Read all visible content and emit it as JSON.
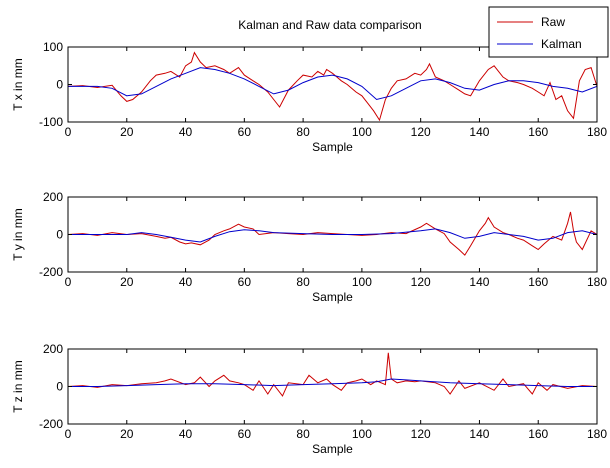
{
  "title": "Kalman and Raw data comparison",
  "legend": {
    "position": "top-right",
    "items": [
      {
        "label": "Raw",
        "color": "#cc0000"
      },
      {
        "label": "Kalman",
        "color": "#0000cc"
      }
    ]
  },
  "colors": {
    "raw": "#cc0000",
    "kalman": "#0000cc",
    "axes": "#000000",
    "background": "#ffffff"
  },
  "chart_data": [
    {
      "type": "line",
      "xlabel": "Sample",
      "ylabel": "T x in mm",
      "xlim": [
        0,
        180
      ],
      "ylim": [
        -100,
        100
      ],
      "xticks": [
        0,
        20,
        40,
        60,
        80,
        100,
        120,
        140,
        160,
        180
      ],
      "yticks": [
        -100,
        0,
        100
      ],
      "grid": false,
      "series": [
        {
          "name": "Raw",
          "color": "#cc0000",
          "x": [
            0,
            5,
            10,
            15,
            18,
            20,
            22,
            25,
            28,
            30,
            33,
            35,
            38,
            40,
            42,
            43,
            45,
            47,
            50,
            53,
            55,
            58,
            60,
            63,
            65,
            68,
            70,
            72,
            75,
            78,
            80,
            83,
            85,
            87,
            88,
            90,
            93,
            95,
            98,
            100,
            102,
            104,
            106,
            108,
            110,
            112,
            115,
            118,
            120,
            122,
            123,
            125,
            128,
            130,
            133,
            135,
            137,
            140,
            143,
            145,
            148,
            150,
            153,
            155,
            158,
            160,
            162,
            164,
            166,
            168,
            170,
            172,
            174,
            176,
            178,
            180
          ],
          "y": [
            -5,
            -3,
            -8,
            -2,
            -30,
            -45,
            -40,
            -20,
            10,
            25,
            30,
            35,
            20,
            50,
            60,
            85,
            60,
            45,
            50,
            40,
            30,
            45,
            25,
            10,
            0,
            -20,
            -40,
            -60,
            -15,
            10,
            25,
            20,
            35,
            25,
            40,
            30,
            10,
            0,
            -20,
            -30,
            -50,
            -70,
            -95,
            -40,
            -10,
            10,
            15,
            30,
            25,
            40,
            55,
            20,
            10,
            0,
            -15,
            -25,
            -30,
            10,
            40,
            50,
            20,
            10,
            5,
            0,
            -10,
            -20,
            -30,
            5,
            -40,
            -30,
            -70,
            -90,
            10,
            40,
            45,
            -5
          ]
        },
        {
          "name": "Kalman",
          "color": "#0000cc",
          "x": [
            0,
            10,
            15,
            20,
            25,
            30,
            35,
            40,
            45,
            50,
            55,
            60,
            65,
            70,
            75,
            80,
            85,
            90,
            95,
            100,
            105,
            110,
            115,
            120,
            125,
            130,
            135,
            140,
            145,
            150,
            155,
            160,
            165,
            170,
            175,
            180
          ],
          "y": [
            -5,
            -5,
            -10,
            -30,
            -25,
            -5,
            15,
            30,
            45,
            40,
            30,
            15,
            -5,
            -25,
            -15,
            5,
            20,
            25,
            15,
            -5,
            -40,
            -30,
            -10,
            10,
            15,
            5,
            -10,
            -15,
            0,
            10,
            10,
            5,
            -5,
            -10,
            -20,
            -5
          ]
        }
      ]
    },
    {
      "type": "line",
      "xlabel": "Sample",
      "ylabel": "T y in mm",
      "xlim": [
        0,
        180
      ],
      "ylim": [
        -200,
        200
      ],
      "xticks": [
        0,
        20,
        40,
        60,
        80,
        100,
        120,
        140,
        160,
        180
      ],
      "yticks": [
        -200,
        0,
        200
      ],
      "grid": false,
      "series": [
        {
          "name": "Raw",
          "color": "#cc0000",
          "x": [
            0,
            5,
            10,
            15,
            20,
            25,
            30,
            33,
            35,
            38,
            40,
            42,
            45,
            48,
            50,
            53,
            55,
            58,
            60,
            63,
            65,
            70,
            75,
            80,
            85,
            90,
            95,
            100,
            105,
            110,
            115,
            120,
            122,
            125,
            128,
            130,
            133,
            135,
            137,
            140,
            142,
            143,
            145,
            148,
            150,
            153,
            155,
            158,
            160,
            162,
            165,
            168,
            170,
            171,
            172,
            173,
            175,
            178,
            180
          ],
          "y": [
            0,
            5,
            -5,
            10,
            0,
            5,
            -10,
            -20,
            -15,
            -40,
            -50,
            -45,
            -55,
            -30,
            0,
            20,
            30,
            55,
            40,
            30,
            0,
            10,
            5,
            0,
            10,
            5,
            0,
            -5,
            0,
            10,
            5,
            40,
            60,
            30,
            5,
            -40,
            -80,
            -110,
            -60,
            20,
            60,
            90,
            40,
            10,
            0,
            -20,
            -30,
            -60,
            -80,
            -50,
            -10,
            -30,
            60,
            120,
            20,
            -40,
            -80,
            20,
            0
          ]
        },
        {
          "name": "Kalman",
          "color": "#0000cc",
          "x": [
            0,
            10,
            20,
            25,
            30,
            35,
            40,
            45,
            50,
            55,
            60,
            65,
            70,
            80,
            90,
            100,
            110,
            120,
            125,
            130,
            135,
            140,
            145,
            150,
            155,
            160,
            165,
            170,
            175,
            180
          ],
          "y": [
            0,
            0,
            0,
            10,
            0,
            -15,
            -30,
            -40,
            -10,
            15,
            25,
            20,
            10,
            5,
            0,
            0,
            5,
            20,
            30,
            10,
            -20,
            -10,
            10,
            0,
            -10,
            -30,
            -20,
            10,
            20,
            0
          ]
        }
      ]
    },
    {
      "type": "line",
      "xlabel": "Sample",
      "ylabel": "T z in mm",
      "xlim": [
        0,
        180
      ],
      "ylim": [
        -200,
        200
      ],
      "xticks": [
        0,
        20,
        40,
        60,
        80,
        100,
        120,
        140,
        160,
        180
      ],
      "yticks": [
        -200,
        0,
        200
      ],
      "grid": false,
      "series": [
        {
          "name": "Raw",
          "color": "#cc0000",
          "x": [
            0,
            5,
            10,
            15,
            20,
            25,
            30,
            33,
            35,
            40,
            43,
            45,
            48,
            50,
            53,
            55,
            58,
            60,
            63,
            65,
            68,
            70,
            73,
            75,
            80,
            82,
            85,
            88,
            90,
            93,
            95,
            98,
            100,
            103,
            105,
            108,
            109,
            110,
            112,
            115,
            118,
            120,
            125,
            128,
            130,
            133,
            135,
            140,
            145,
            148,
            150,
            155,
            158,
            160,
            163,
            165,
            170,
            175,
            180
          ],
          "y": [
            0,
            5,
            -5,
            10,
            5,
            15,
            20,
            30,
            40,
            10,
            20,
            50,
            0,
            30,
            60,
            30,
            20,
            10,
            -20,
            30,
            -40,
            10,
            -50,
            20,
            10,
            60,
            20,
            40,
            10,
            -20,
            20,
            30,
            40,
            10,
            30,
            10,
            180,
            40,
            20,
            30,
            25,
            30,
            20,
            0,
            -40,
            30,
            -10,
            20,
            -20,
            40,
            0,
            15,
            -40,
            20,
            -20,
            10,
            -10,
            5,
            0
          ]
        },
        {
          "name": "Kalman",
          "color": "#0000cc",
          "x": [
            0,
            10,
            20,
            30,
            40,
            50,
            60,
            70,
            80,
            90,
            100,
            105,
            110,
            115,
            120,
            130,
            140,
            150,
            160,
            170,
            180
          ],
          "y": [
            0,
            0,
            5,
            10,
            15,
            15,
            10,
            5,
            10,
            15,
            20,
            25,
            40,
            35,
            30,
            20,
            15,
            10,
            5,
            0,
            0
          ]
        }
      ]
    }
  ]
}
